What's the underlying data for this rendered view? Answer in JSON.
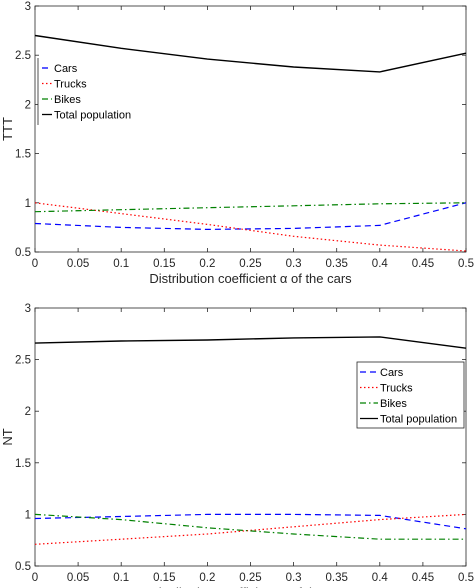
{
  "chart_data": [
    {
      "type": "line",
      "xlabel": "Distribution coefficient α of the cars",
      "ylabel": "TTT",
      "x": [
        0,
        0.1,
        0.2,
        0.3,
        0.4,
        0.5
      ],
      "xlim": [
        0,
        0.5
      ],
      "ylim": [
        0.5,
        3
      ],
      "xticks": [
        "0",
        "0.05",
        "0.1",
        "0.15",
        "0.2",
        "0.25",
        "0.3",
        "0.35",
        "0.4",
        "0.45",
        "0.5"
      ],
      "yticks": [
        "0.5",
        "1",
        "1.5",
        "2",
        "2.5",
        "3"
      ],
      "grid": false,
      "legend_position": "top-left",
      "series": [
        {
          "name": "Cars",
          "color": "#0000ff",
          "dash": "dashed",
          "values": [
            0.79,
            0.75,
            0.73,
            0.74,
            0.77,
            1.0
          ]
        },
        {
          "name": "Trucks",
          "color": "#ff0000",
          "dash": "dotted",
          "values": [
            1.0,
            0.89,
            0.78,
            0.66,
            0.57,
            0.51
          ]
        },
        {
          "name": "Bikes",
          "color": "#008000",
          "dash": "dashdot",
          "values": [
            0.91,
            0.93,
            0.95,
            0.97,
            0.99,
            1.0
          ]
        },
        {
          "name": "Total population",
          "color": "#000000",
          "dash": "solid",
          "values": [
            2.7,
            2.57,
            2.46,
            2.38,
            2.33,
            2.52
          ]
        }
      ]
    },
    {
      "type": "line",
      "xlabel": "Distribution coefficient α of the cars",
      "ylabel": "NT",
      "x": [
        0,
        0.1,
        0.2,
        0.3,
        0.4,
        0.5
      ],
      "xlim": [
        0,
        0.5
      ],
      "ylim": [
        0.5,
        3
      ],
      "xticks": [
        "0",
        "0.05",
        "0.1",
        "0.15",
        "0.2",
        "0.25",
        "0.3",
        "0.35",
        "0.4",
        "0.45",
        "0.5"
      ],
      "yticks": [
        "0.5",
        "1",
        "1.5",
        "2",
        "2.5",
        "3"
      ],
      "grid": false,
      "legend_position": "right",
      "series": [
        {
          "name": "Cars",
          "color": "#0000ff",
          "dash": "dashed",
          "values": [
            0.96,
            0.98,
            1.0,
            1.0,
            0.99,
            0.86
          ]
        },
        {
          "name": "Trucks",
          "color": "#ff0000",
          "dash": "dotted",
          "values": [
            0.71,
            0.76,
            0.81,
            0.88,
            0.95,
            1.0
          ]
        },
        {
          "name": "Bikes",
          "color": "#008000",
          "dash": "dashdot",
          "values": [
            1.0,
            0.95,
            0.87,
            0.81,
            0.76,
            0.76
          ]
        },
        {
          "name": "Total population",
          "color": "#000000",
          "dash": "solid",
          "values": [
            2.66,
            2.68,
            2.69,
            2.71,
            2.72,
            2.61
          ]
        }
      ]
    }
  ]
}
